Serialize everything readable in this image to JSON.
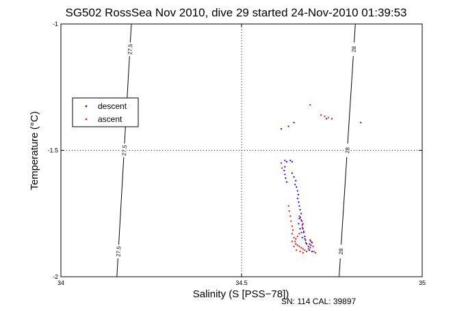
{
  "chart_data": {
    "type": "scatter",
    "title": "SG502 RossSea Nov 2010, dive 29 started 24-Nov-2010 01:39:53",
    "xlabel": "Salinity (S [PSS−78])",
    "ylabel": "Temperature (°C)",
    "xlim": [
      34,
      35
    ],
    "ylim": [
      -2,
      -1
    ],
    "xticks": [
      "34",
      "34.5",
      "35"
    ],
    "yticks": [
      "-1",
      "-1.5",
      "-2"
    ],
    "grid": "dotted",
    "legend_position": "left",
    "footnote": "SN: 114  CAL: 39897",
    "contour_labels": [
      "27.5",
      "27.5",
      "27.5",
      "28",
      "28",
      "28"
    ],
    "contours": [
      {
        "label": "27.5",
        "x": [
          34.195,
          34.155
        ],
        "y": [
          -1,
          -2
        ]
      },
      {
        "label": "28",
        "x": [
          34.815,
          34.77
        ],
        "y": [
          -1,
          -2
        ]
      }
    ],
    "series": [
      {
        "name": "descent",
        "color": "#0000ff",
        "points": [
          [
            34.61,
            -1.415
          ],
          [
            34.63,
            -1.405
          ],
          [
            34.645,
            -1.39
          ],
          [
            34.735,
            -1.375
          ],
          [
            34.83,
            -1.39
          ],
          [
            34.62,
            -1.54
          ],
          [
            34.625,
            -1.545
          ],
          [
            34.635,
            -1.54
          ],
          [
            34.64,
            -1.545
          ],
          [
            34.62,
            -1.565
          ],
          [
            34.618,
            -1.58
          ],
          [
            34.62,
            -1.595
          ],
          [
            34.622,
            -1.61
          ],
          [
            34.625,
            -1.625
          ],
          [
            34.64,
            -1.59
          ],
          [
            34.645,
            -1.605
          ],
          [
            34.65,
            -1.62
          ],
          [
            34.648,
            -1.635
          ],
          [
            34.652,
            -1.645
          ],
          [
            34.655,
            -1.66
          ],
          [
            34.657,
            -1.675
          ],
          [
            34.655,
            -1.69
          ],
          [
            34.658,
            -1.705
          ],
          [
            34.66,
            -1.72
          ],
          [
            34.662,
            -1.735
          ],
          [
            34.665,
            -1.75
          ],
          [
            34.663,
            -1.765
          ],
          [
            34.667,
            -1.78
          ],
          [
            34.668,
            -1.795
          ],
          [
            34.67,
            -1.81
          ],
          [
            34.672,
            -1.825
          ],
          [
            34.675,
            -1.84
          ],
          [
            34.677,
            -1.855
          ],
          [
            34.68,
            -1.87
          ],
          [
            34.685,
            -1.88
          ],
          [
            34.69,
            -1.885
          ],
          [
            34.692,
            -1.875
          ],
          [
            34.695,
            -1.865
          ],
          [
            34.69,
            -1.855
          ],
          [
            34.688,
            -1.895
          ],
          [
            34.695,
            -1.9
          ],
          [
            34.66,
            -1.77
          ],
          [
            34.658,
            -1.79
          ],
          [
            34.662,
            -1.81
          ],
          [
            34.666,
            -1.825
          ],
          [
            34.668,
            -1.845
          ]
        ]
      },
      {
        "name": "ascent",
        "color": "#ff0000",
        "points": [
          [
            34.69,
            -1.32
          ],
          [
            34.72,
            -1.36
          ],
          [
            34.73,
            -1.365
          ],
          [
            34.74,
            -1.37
          ],
          [
            34.75,
            -1.375
          ],
          [
            34.61,
            -1.55
          ],
          [
            34.612,
            -1.57
          ],
          [
            34.63,
            -1.72
          ],
          [
            34.632,
            -1.74
          ],
          [
            34.635,
            -1.76
          ],
          [
            34.637,
            -1.78
          ],
          [
            34.64,
            -1.8
          ],
          [
            34.642,
            -1.815
          ],
          [
            34.64,
            -1.83
          ],
          [
            34.645,
            -1.845
          ],
          [
            34.648,
            -1.86
          ],
          [
            34.65,
            -1.87
          ],
          [
            34.655,
            -1.875
          ],
          [
            34.66,
            -1.88
          ],
          [
            34.665,
            -1.885
          ],
          [
            34.67,
            -1.89
          ],
          [
            34.675,
            -1.895
          ],
          [
            34.68,
            -1.9
          ],
          [
            34.685,
            -1.89
          ],
          [
            34.69,
            -1.885
          ],
          [
            34.7,
            -1.9
          ],
          [
            34.705,
            -1.905
          ],
          [
            34.66,
            -1.76
          ],
          [
            34.665,
            -1.775
          ],
          [
            34.67,
            -1.79
          ],
          [
            34.668,
            -1.805
          ],
          [
            34.672,
            -1.82
          ],
          [
            34.675,
            -1.85
          ],
          [
            34.678,
            -1.865
          ],
          [
            34.67,
            -1.905
          ],
          [
            34.662,
            -1.9
          ],
          [
            34.652,
            -1.895
          ],
          [
            34.645,
            -1.88
          ],
          [
            34.64,
            -1.86
          ],
          [
            34.65,
            -1.85
          ],
          [
            34.655,
            -1.84
          ],
          [
            34.66,
            -1.83
          ],
          [
            34.688,
            -1.87
          ],
          [
            34.692,
            -1.86
          ],
          [
            34.698,
            -1.88
          ]
        ]
      }
    ]
  }
}
